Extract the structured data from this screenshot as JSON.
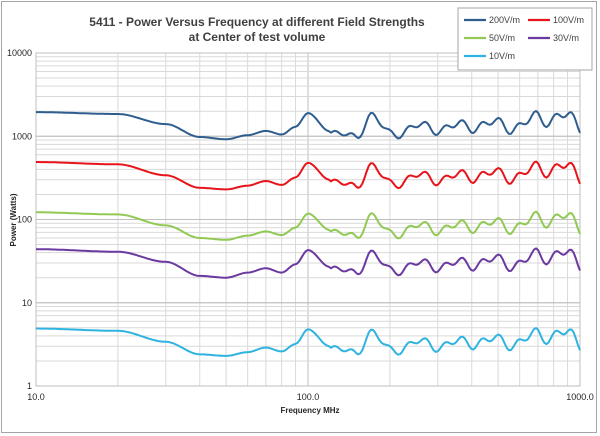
{
  "chart_data": {
    "type": "line",
    "title": "5411 - Power Versus Frequency at different Field Strengths",
    "subtitle": "at Center of test volume",
    "xlabel": "Frequency MHz",
    "ylabel": "Power (Watts)",
    "x_scale": "log",
    "y_scale": "log",
    "xlim": [
      10,
      1000
    ],
    "ylim": [
      1,
      10000
    ],
    "x_ticks": [
      "10.0",
      "100.0",
      "1000.0"
    ],
    "y_ticks": [
      "1",
      "10",
      "100",
      "1000",
      "10000"
    ],
    "grid": true,
    "legend_position": "top-right",
    "x": [
      10,
      20,
      30,
      40,
      50,
      60,
      70,
      80,
      90,
      100,
      120,
      150,
      170,
      200,
      250,
      300,
      400,
      500,
      600,
      700,
      800,
      900,
      1000
    ],
    "series": [
      {
        "name": "200V/m",
        "color": "#2e5d8e",
        "values": [
          1950,
          1850,
          1400,
          980,
          920,
          1030,
          1160,
          1050,
          1300,
          1900,
          1150,
          950,
          1850,
          1050,
          1300,
          1250,
          1350,
          1400,
          1300,
          1700,
          1650,
          1700,
          1350
        ]
      },
      {
        "name": "100V/m",
        "color": "#e8141b",
        "values": [
          490,
          460,
          340,
          240,
          230,
          255,
          290,
          260,
          320,
          480,
          300,
          240,
          460,
          265,
          330,
          310,
          340,
          350,
          330,
          420,
          410,
          420,
          330
        ]
      },
      {
        "name": "50V/m",
        "color": "#92c954",
        "values": [
          122,
          115,
          85,
          60,
          57,
          64,
          72,
          65,
          80,
          118,
          75,
          60,
          115,
          66,
          82,
          78,
          85,
          88,
          82,
          105,
          102,
          105,
          82
        ]
      },
      {
        "name": "30V/m",
        "color": "#6a3aa0",
        "values": [
          44,
          41,
          31,
          21,
          20,
          23,
          26,
          23,
          29,
          43,
          27,
          22,
          41,
          24,
          29,
          28,
          30,
          32,
          29,
          38,
          37,
          38,
          30
        ]
      },
      {
        "name": "10V/m",
        "color": "#2fb3e0",
        "values": [
          4.9,
          4.6,
          3.4,
          2.4,
          2.3,
          2.55,
          2.9,
          2.6,
          3.2,
          4.8,
          3.0,
          2.4,
          4.6,
          2.65,
          3.3,
          3.1,
          3.4,
          3.5,
          3.3,
          4.2,
          4.1,
          4.2,
          3.3
        ]
      }
    ]
  }
}
